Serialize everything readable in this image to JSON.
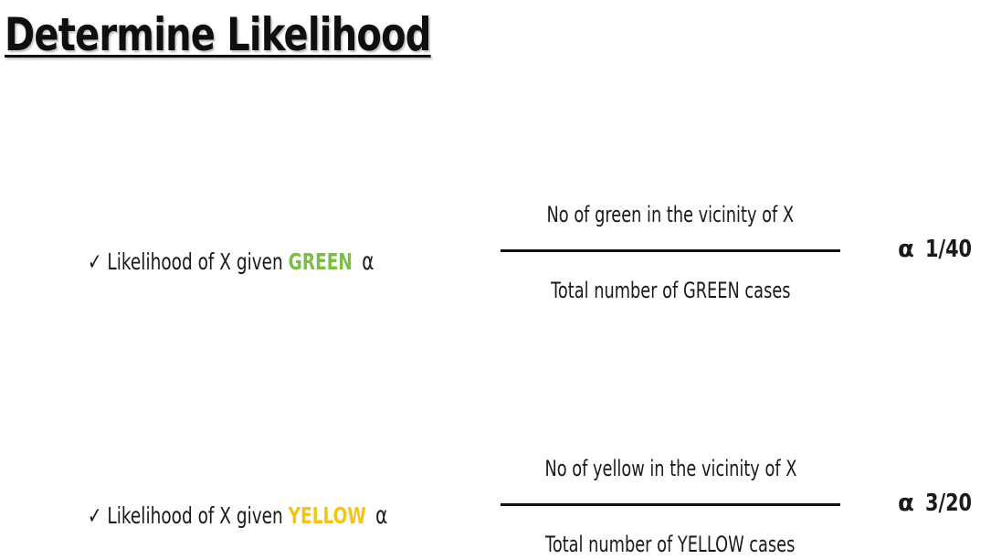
{
  "slide": {
    "title": "Determine Likelihood",
    "rows": [
      {
        "check_icon": "✓",
        "label_prefix": "Likelihood of X given ",
        "class_name": "GREEN",
        "class_color": "#7cbd43",
        "proportional_symbol": "α",
        "numerator": "No of green in the vicinity of X",
        "denominator": "Total number of GREEN cases",
        "result_symbol": "α",
        "result_value": "1/40"
      },
      {
        "check_icon": "✓",
        "label_prefix": "Likelihood of X given ",
        "class_name": "YELLOW",
        "class_color": "#f2c418",
        "proportional_symbol": "α",
        "numerator": "No of yellow in the vicinity of X",
        "denominator": "Total number of YELLOW cases",
        "result_symbol": "α",
        "result_value": "3/20"
      }
    ]
  }
}
